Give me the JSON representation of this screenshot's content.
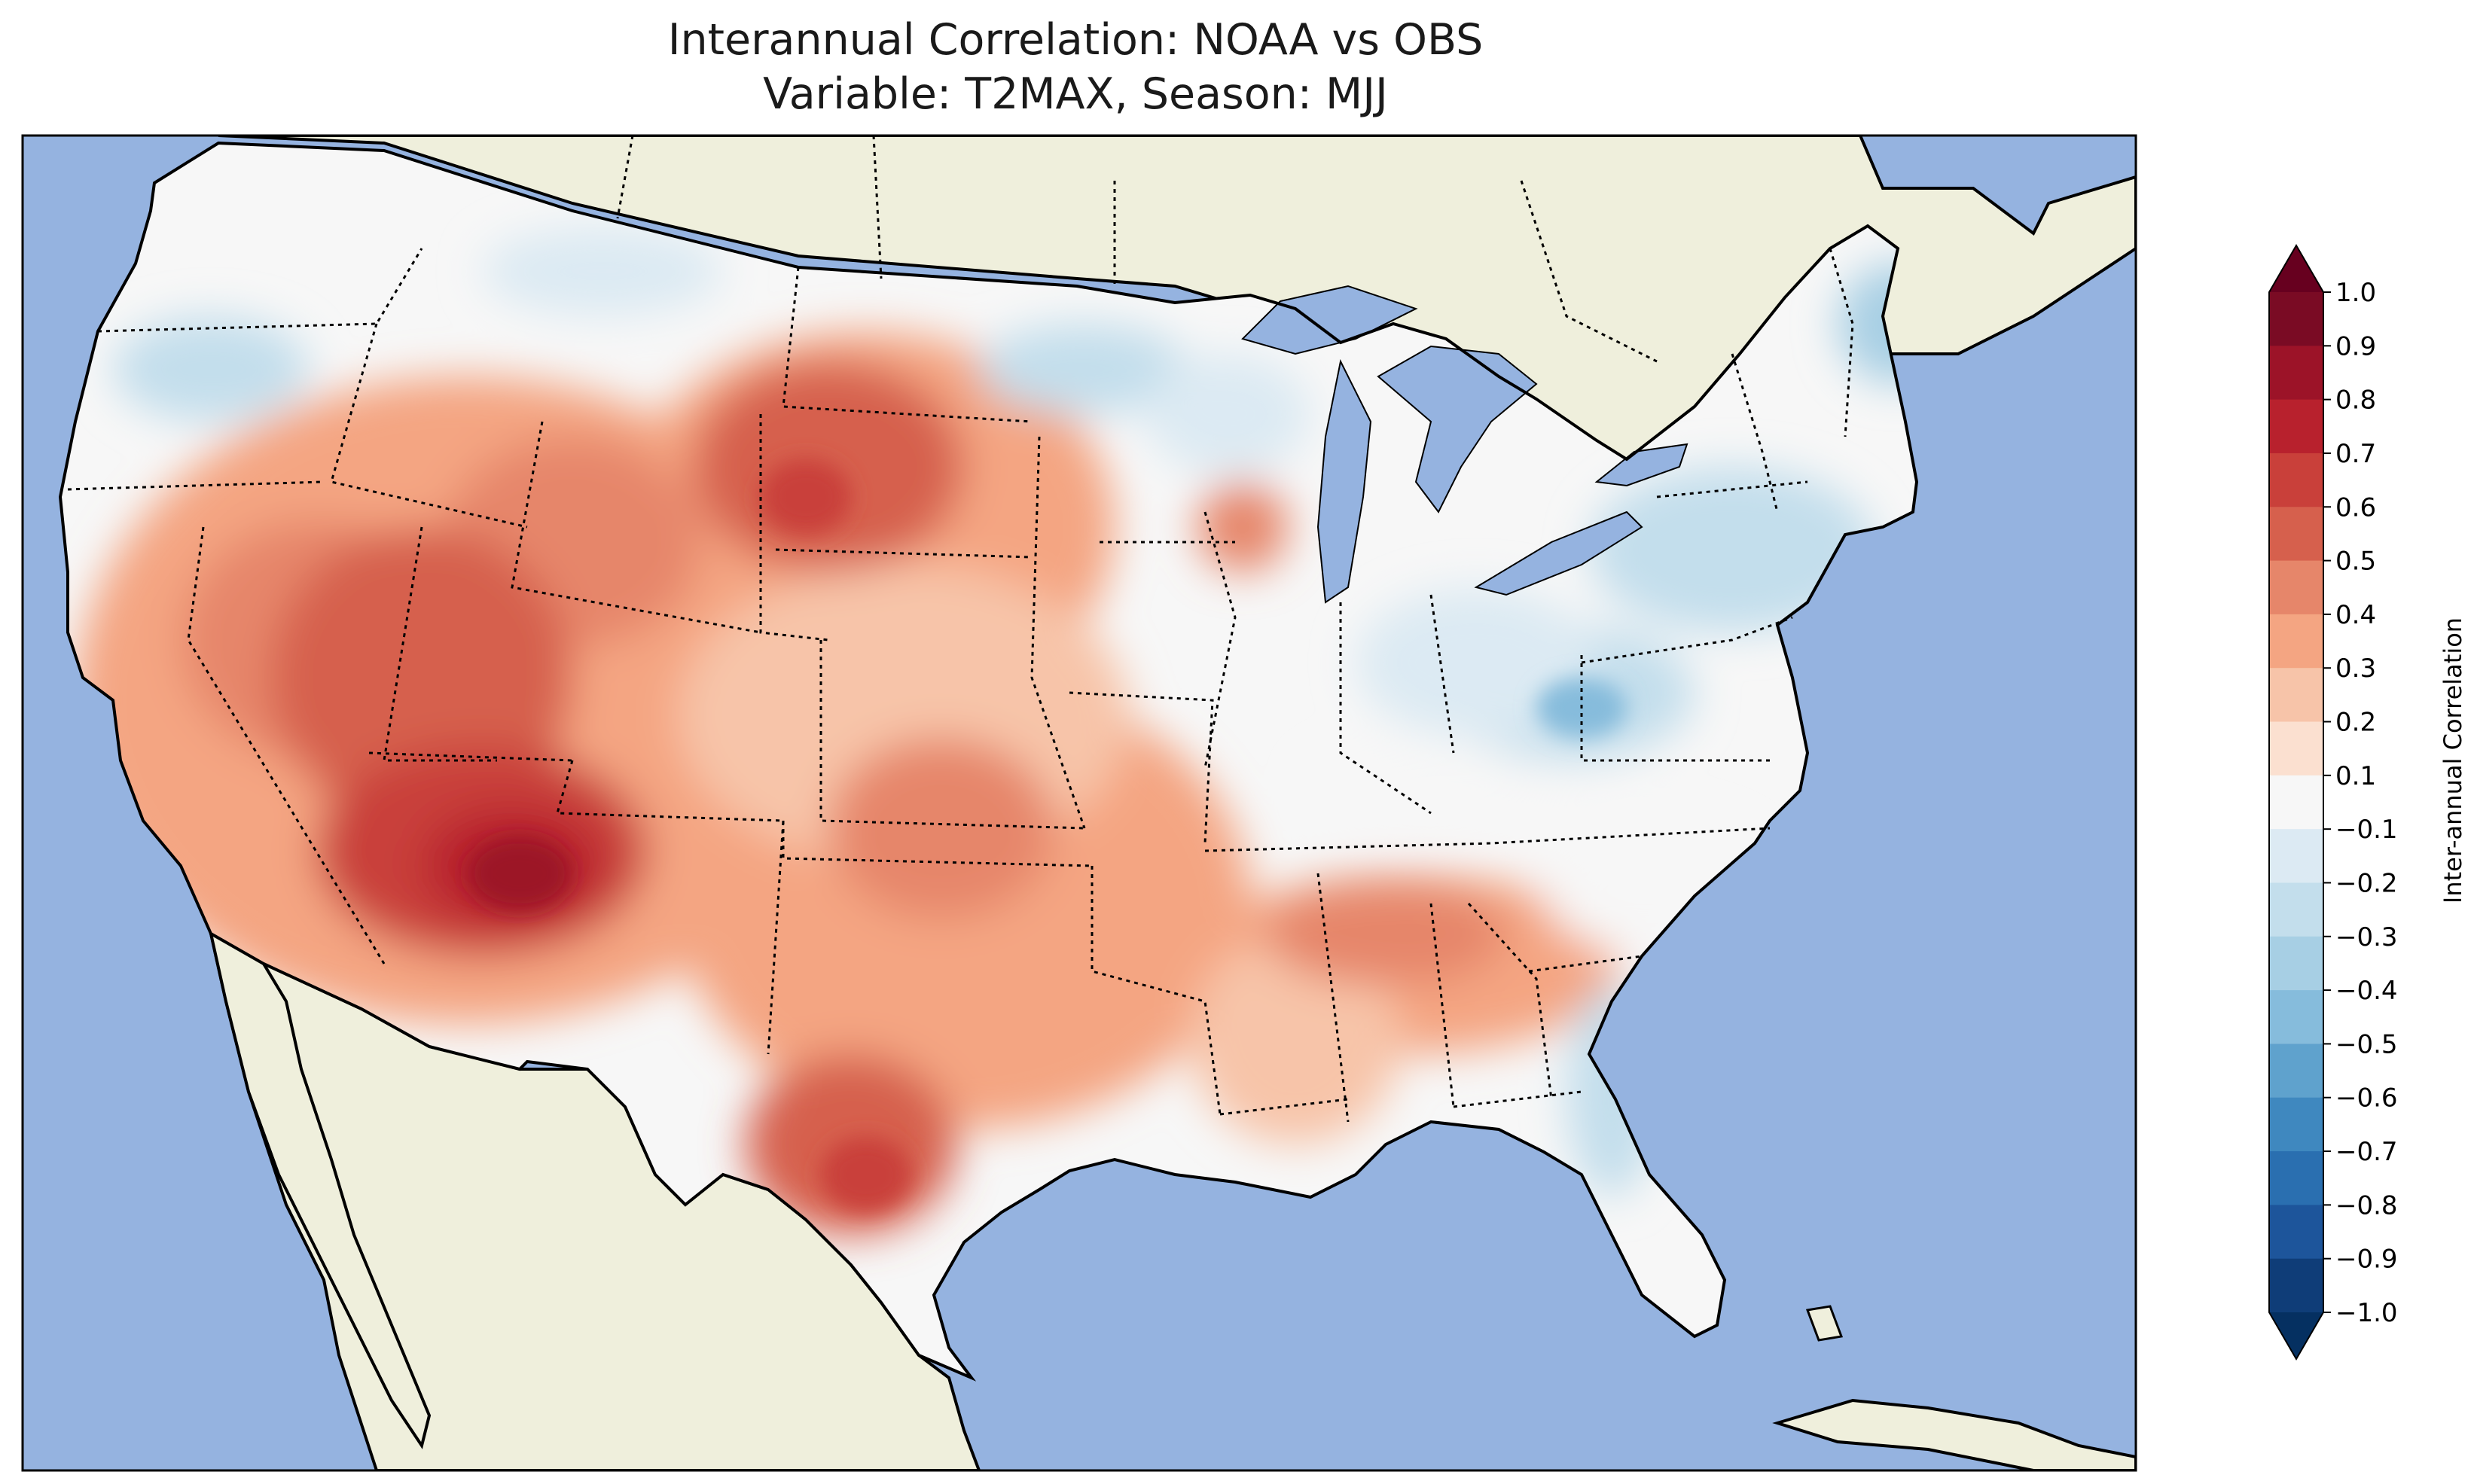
{
  "title_line1": "Interannual Correlation: NOAA vs OBS",
  "title_line2": "Variable: T2MAX, Season: MJJ",
  "colorbar": {
    "label": "Inter-annual Correlation",
    "ticks": [
      "1.0",
      "0.9",
      "0.8",
      "0.7",
      "0.6",
      "0.5",
      "0.4",
      "0.3",
      "0.2",
      "0.1",
      "−0.1",
      "−0.2",
      "−0.3",
      "−0.4",
      "−0.5",
      "−0.6",
      "−0.7",
      "−0.8",
      "−0.9",
      "−1.0"
    ],
    "colors_top_to_bottom": [
      "#7a0b24",
      "#9c1328",
      "#b8212d",
      "#c9403a",
      "#d6604d",
      "#e6866a",
      "#f4a582",
      "#f7c4a9",
      "#fbe0d0",
      "#f7f7f7",
      "#dceaf3",
      "#c3deec",
      "#a7cfe4",
      "#86bcdc",
      "#5fa2cd",
      "#3f88bf",
      "#2a6fb0",
      "#1d559b",
      "#0f3d78"
    ],
    "extend_max_color": "#67001f",
    "extend_min_color": "#053061"
  },
  "map": {
    "ocean_color": "#95b3e0",
    "land_color": "#efefdc",
    "lake_color": "#95b3e0"
  }
}
